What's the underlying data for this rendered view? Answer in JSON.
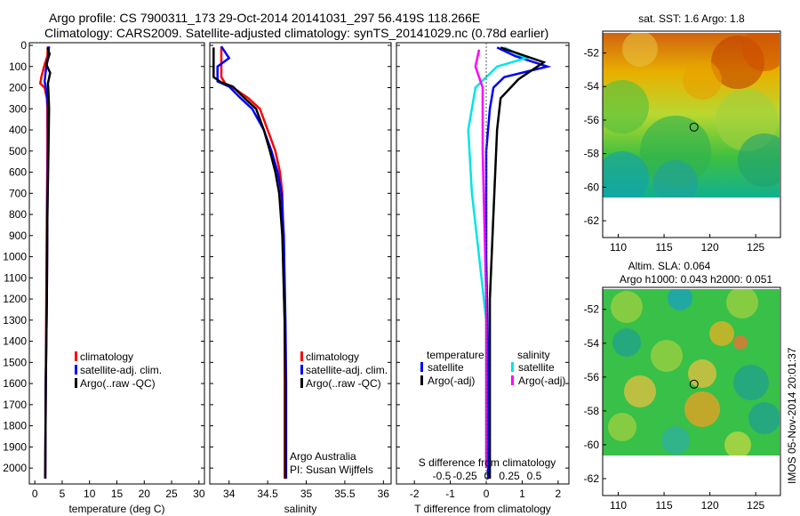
{
  "header": {
    "line1": "Argo profile: CS 7900311_173 29-Oct-2014 20141031_297 56.419S 118.266E",
    "line2": "Climatology: CARS2009. Satellite-adjusted climatology: synTS_20141029.nc (0.78d earlier)"
  },
  "colors": {
    "climatology": "#ff0000",
    "satellite": "#0000ff",
    "argo": "#000000",
    "sal_satellite": "#00e5e5",
    "sal_argo": "#ff00ff"
  },
  "chart_data": [
    {
      "type": "line",
      "xlabel": "temperature (deg C)",
      "xlim": [
        -1,
        31
      ],
      "xticks": [
        "0",
        "5",
        "10",
        "15",
        "20",
        "25",
        "30"
      ],
      "ylim": [
        0,
        2050
      ],
      "yticks": [
        "0",
        "100",
        "200",
        "300",
        "400",
        "500",
        "600",
        "700",
        "800",
        "900",
        "1000",
        "1100",
        "1200",
        "1300",
        "1400",
        "1500",
        "1600",
        "1700",
        "1800",
        "1900",
        "2000"
      ],
      "legend": [
        "climatology",
        "satellite-adj. clim.",
        "Argo(..raw -QC)"
      ],
      "series": [
        {
          "name": "climatology",
          "color": "#ff0000",
          "points": [
            [
              2.4,
              5
            ],
            [
              2.3,
              50
            ],
            [
              1.7,
              100
            ],
            [
              1.2,
              150
            ],
            [
              1.0,
              180
            ],
            [
              1.8,
              200
            ],
            [
              2.2,
              250
            ],
            [
              2.3,
              300
            ],
            [
              2.3,
              500
            ],
            [
              2.2,
              800
            ],
            [
              2.1,
              1200
            ],
            [
              2.0,
              1600
            ],
            [
              1.9,
              2050
            ]
          ]
        },
        {
          "name": "satellite-adj. clim.",
          "color": "#0000ff",
          "points": [
            [
              2.6,
              5
            ],
            [
              2.4,
              60
            ],
            [
              2.0,
              120
            ],
            [
              1.8,
              170
            ],
            [
              2.0,
              200
            ],
            [
              2.3,
              250
            ],
            [
              2.4,
              300
            ],
            [
              2.4,
              500
            ],
            [
              2.3,
              800
            ],
            [
              2.2,
              1200
            ],
            [
              2.0,
              1600
            ],
            [
              1.9,
              2050
            ]
          ]
        },
        {
          "name": "Argo(..raw -QC)",
          "color": "#000000",
          "points": [
            [
              2.3,
              10
            ],
            [
              2.7,
              40
            ],
            [
              2.1,
              90
            ],
            [
              2.8,
              130
            ],
            [
              2.4,
              180
            ],
            [
              2.5,
              220
            ],
            [
              2.6,
              300
            ],
            [
              2.5,
              500
            ],
            [
              2.3,
              800
            ],
            [
              2.2,
              1200
            ],
            [
              2.0,
              1600
            ],
            [
              1.9,
              2050
            ]
          ]
        }
      ]
    },
    {
      "type": "line",
      "xlabel": "salinity",
      "xlim": [
        33.75,
        36.1
      ],
      "xticks": [
        "34",
        "34.5",
        "35",
        "35.5",
        "36"
      ],
      "ylim": [
        0,
        2050
      ],
      "legend": [
        "climatology",
        "satellite-adj. clim.",
        "Argo(..raw -QC)"
      ],
      "annotation1": "Argo Australia",
      "annotation2": "PI: Susan Wijffels",
      "series": [
        {
          "name": "climatology",
          "color": "#ff0000",
          "points": [
            [
              33.9,
              5
            ],
            [
              33.9,
              150
            ],
            [
              33.95,
              180
            ],
            [
              34.05,
              200
            ],
            [
              34.25,
              250
            ],
            [
              34.4,
              300
            ],
            [
              34.5,
              400
            ],
            [
              34.6,
              500
            ],
            [
              34.66,
              600
            ],
            [
              34.69,
              700
            ],
            [
              34.7,
              900
            ],
            [
              34.72,
              1300
            ],
            [
              34.72,
              1600
            ],
            [
              34.72,
              2050
            ]
          ]
        },
        {
          "name": "satellite-adj. clim.",
          "color": "#0000ff",
          "points": [
            [
              33.9,
              5
            ],
            [
              34.0,
              60
            ],
            [
              33.85,
              100
            ],
            [
              33.85,
              170
            ],
            [
              34.0,
              195
            ],
            [
              34.15,
              250
            ],
            [
              34.3,
              300
            ],
            [
              34.45,
              400
            ],
            [
              34.55,
              500
            ],
            [
              34.63,
              600
            ],
            [
              34.68,
              700
            ],
            [
              34.71,
              900
            ],
            [
              34.73,
              1300
            ],
            [
              34.74,
              1600
            ],
            [
              34.74,
              2050
            ]
          ]
        },
        {
          "name": "Argo(..raw -QC)",
          "color": "#000000",
          "points": [
            [
              33.8,
              10
            ],
            [
              33.8,
              150
            ],
            [
              33.9,
              175
            ],
            [
              34.05,
              195
            ],
            [
              34.2,
              250
            ],
            [
              34.35,
              300
            ],
            [
              34.45,
              400
            ],
            [
              34.53,
              500
            ],
            [
              34.6,
              600
            ],
            [
              34.65,
              700
            ],
            [
              34.69,
              900
            ],
            [
              34.72,
              1300
            ],
            [
              34.73,
              1600
            ],
            [
              34.73,
              2050
            ]
          ]
        }
      ]
    },
    {
      "type": "line",
      "xlabel": "T difference from climatology",
      "toplabel": "S difference from climatology",
      "xlim": [
        -2.5,
        2.3
      ],
      "xticks": [
        "-2",
        "-1",
        "0",
        "1",
        "2"
      ],
      "sticks": [
        "-0.5",
        "-0.25",
        "0",
        "0.25",
        "0.5"
      ],
      "ylim": [
        0,
        2050
      ],
      "legend_t_title": "temperature",
      "legend_s_title": "salinity",
      "legend_t": [
        "satellite",
        "Argo(-adj)"
      ],
      "legend_s": [
        "satellite",
        "Argo(-adj)"
      ],
      "series": [
        {
          "name": "T satellite",
          "color": "#0000ff",
          "points": [
            [
              0.3,
              10
            ],
            [
              0.8,
              50
            ],
            [
              1.7,
              100
            ],
            [
              0.5,
              150
            ],
            [
              0.2,
              200
            ],
            [
              0.1,
              300
            ],
            [
              0.0,
              500
            ],
            [
              0.0,
              1000
            ],
            [
              0.05,
              1500
            ],
            [
              0.05,
              2050
            ]
          ]
        },
        {
          "name": "S satellite",
          "color": "#00e5e5",
          "points": [
            [
              0.5,
              10
            ],
            [
              1.1,
              60
            ],
            [
              0.3,
              100
            ],
            [
              -0.3,
              200
            ],
            [
              -0.5,
              400
            ],
            [
              -0.4,
              700
            ],
            [
              -0.2,
              1000
            ],
            [
              0.0,
              1300
            ],
            [
              0.0,
              2000
            ]
          ]
        },
        {
          "name": "T Argo(-adj)",
          "color": "#000000",
          "points": [
            [
              0.4,
              10
            ],
            [
              1.6,
              80
            ],
            [
              0.9,
              160
            ],
            [
              0.4,
              250
            ],
            [
              0.3,
              400
            ],
            [
              0.2,
              800
            ],
            [
              0.1,
              1200
            ],
            [
              0.1,
              2050
            ]
          ]
        },
        {
          "name": "S Argo(-adj)",
          "color": "#ff00ff",
          "points": [
            [
              -0.2,
              20
            ],
            [
              -0.3,
              100
            ],
            [
              -0.1,
              200
            ],
            [
              -0.1,
              500
            ],
            [
              0.0,
              1200
            ],
            [
              0.0,
              2000
            ]
          ]
        }
      ]
    },
    {
      "type": "heatmap",
      "title": "sat. SST: 1.6 Argo: 1.8",
      "xticks": [
        "110",
        "115",
        "120",
        "125"
      ],
      "yticks": [
        "-52",
        "-54",
        "-56",
        "-58",
        "-60",
        "-62"
      ],
      "xlim": [
        108.3,
        127.7
      ],
      "ylim": [
        -63,
        -50.7
      ],
      "marker": [
        118.266,
        -56.419
      ]
    },
    {
      "type": "heatmap",
      "title": "Altim. SLA: 0.064",
      "subtitle": "Argo h1000: 0.043 h2000: 0.051",
      "xticks": [
        "110",
        "115",
        "120",
        "125"
      ],
      "yticks": [
        "-52",
        "-54",
        "-56",
        "-58",
        "-60",
        "-62"
      ],
      "xlim": [
        108.3,
        127.7
      ],
      "ylim": [
        -63,
        -50.7
      ],
      "marker": [
        118.266,
        -56.419
      ]
    }
  ],
  "footer": {
    "credit": "IMOS 05-Nov-2014 20:01:37"
  }
}
